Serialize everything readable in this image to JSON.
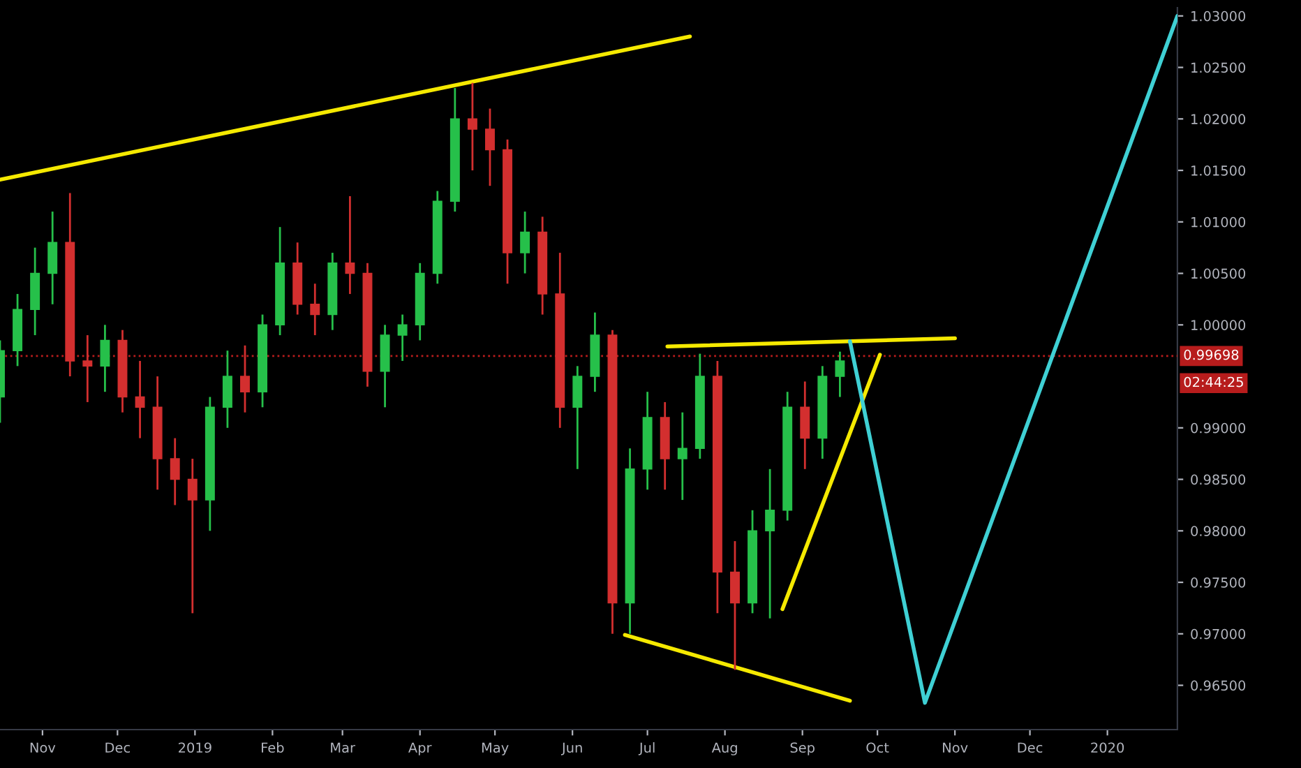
{
  "chart_data": {
    "type": "candlestick",
    "x": [
      "2018-10-15",
      "2018-10-22",
      "2018-10-29",
      "2018-11-05",
      "2018-11-12",
      "2018-11-19",
      "2018-11-26",
      "2018-12-03",
      "2018-12-10",
      "2018-12-17",
      "2018-12-24",
      "2018-12-31",
      "2019-01-07",
      "2019-01-14",
      "2019-01-21",
      "2019-01-28",
      "2019-02-04",
      "2019-02-11",
      "2019-02-18",
      "2019-02-25",
      "2019-03-04",
      "2019-03-11",
      "2019-03-18",
      "2019-03-25",
      "2019-04-01",
      "2019-04-08",
      "2019-04-15",
      "2019-04-22",
      "2019-04-29",
      "2019-05-06",
      "2019-05-13",
      "2019-05-20",
      "2019-05-27",
      "2019-06-03",
      "2019-06-10",
      "2019-06-17",
      "2019-06-24",
      "2019-07-01",
      "2019-07-08",
      "2019-07-15",
      "2019-07-22",
      "2019-07-29",
      "2019-08-05",
      "2019-08-12",
      "2019-08-19",
      "2019-08-26",
      "2019-09-02",
      "2019-09-09",
      "2019-09-16"
    ],
    "ohlc": [
      [
        0.993,
        0.9985,
        0.9905,
        0.9975
      ],
      [
        0.9975,
        1.003,
        0.996,
        1.0015
      ],
      [
        1.0015,
        1.0075,
        0.999,
        1.005
      ],
      [
        1.005,
        1.011,
        1.002,
        1.008
      ],
      [
        1.008,
        1.0128,
        0.995,
        0.9965
      ],
      [
        0.9965,
        0.999,
        0.9925,
        0.996
      ],
      [
        0.996,
        1.0,
        0.9935,
        0.9985
      ],
      [
        0.9985,
        0.9995,
        0.9915,
        0.993
      ],
      [
        0.993,
        0.9965,
        0.989,
        0.992
      ],
      [
        0.992,
        0.995,
        0.984,
        0.987
      ],
      [
        0.987,
        0.989,
        0.9825,
        0.985
      ],
      [
        0.985,
        0.987,
        0.972,
        0.983
      ],
      [
        0.983,
        0.993,
        0.98,
        0.992
      ],
      [
        0.992,
        0.9975,
        0.99,
        0.995
      ],
      [
        0.995,
        0.998,
        0.9915,
        0.9935
      ],
      [
        0.9935,
        1.001,
        0.992,
        1.0
      ],
      [
        1.0,
        1.0095,
        0.999,
        1.006
      ],
      [
        1.006,
        1.008,
        1.001,
        1.002
      ],
      [
        1.002,
        1.004,
        0.999,
        1.001
      ],
      [
        1.001,
        1.007,
        0.9995,
        1.006
      ],
      [
        1.006,
        1.0125,
        1.003,
        1.005
      ],
      [
        1.005,
        1.006,
        0.994,
        0.9955
      ],
      [
        0.9955,
        1.0,
        0.992,
        0.999
      ],
      [
        0.999,
        1.001,
        0.9965,
        1.0
      ],
      [
        1.0,
        1.006,
        0.9985,
        1.005
      ],
      [
        1.005,
        1.013,
        1.004,
        1.012
      ],
      [
        1.012,
        1.023,
        1.011,
        1.02
      ],
      [
        1.02,
        1.0235,
        1.015,
        1.019
      ],
      [
        1.019,
        1.021,
        1.0135,
        1.017
      ],
      [
        1.017,
        1.018,
        1.004,
        1.007
      ],
      [
        1.007,
        1.011,
        1.005,
        1.009
      ],
      [
        1.009,
        1.0105,
        1.001,
        1.003
      ],
      [
        1.003,
        1.007,
        0.99,
        0.992
      ],
      [
        0.992,
        0.996,
        0.986,
        0.995
      ],
      [
        0.995,
        1.0012,
        0.9935,
        0.999
      ],
      [
        0.999,
        0.9995,
        0.97,
        0.973
      ],
      [
        0.973,
        0.988,
        0.97,
        0.986
      ],
      [
        0.986,
        0.9935,
        0.984,
        0.991
      ],
      [
        0.991,
        0.9925,
        0.984,
        0.987
      ],
      [
        0.987,
        0.9915,
        0.983,
        0.988
      ],
      [
        0.988,
        0.9972,
        0.987,
        0.995
      ],
      [
        0.995,
        0.9965,
        0.972,
        0.976
      ],
      [
        0.976,
        0.979,
        0.9665,
        0.973
      ],
      [
        0.973,
        0.982,
        0.972,
        0.98
      ],
      [
        0.98,
        0.986,
        0.9715,
        0.982
      ],
      [
        0.982,
        0.9935,
        0.981,
        0.992
      ],
      [
        0.992,
        0.9945,
        0.986,
        0.989
      ],
      [
        0.989,
        0.996,
        0.987,
        0.995
      ],
      [
        0.995,
        0.9974,
        0.993,
        0.9965
      ]
    ],
    "series": [
      {
        "type": "line",
        "color": "#f5e900",
        "x": [
          "2018-10-15",
          "2019-07-18"
        ],
        "values": [
          1.0141,
          1.028
        ]
      },
      {
        "type": "line",
        "color": "#f5e900",
        "x": [
          "2019-07-09",
          "2019-11-01"
        ],
        "values": [
          0.9979,
          0.9987
        ]
      },
      {
        "type": "line",
        "color": "#f5e900",
        "x": [
          "2019-06-22",
          "2019-09-20"
        ],
        "values": [
          0.9699,
          0.9635
        ]
      },
      {
        "type": "line",
        "color": "#f5e900",
        "x": [
          "2019-08-24",
          "2019-10-02"
        ],
        "values": [
          0.9724,
          0.9971
        ]
      },
      {
        "type": "line",
        "color": "#3fd0d4",
        "x": [
          "2019-09-20",
          "2019-10-20",
          "2020-01-29"
        ],
        "values": [
          0.9984,
          0.9633,
          1.03
        ]
      }
    ],
    "ref_lines": [
      {
        "axis": "y",
        "value": 0.99698,
        "label": "0.99698",
        "color": "#b71c1c",
        "line_style": "dotted"
      }
    ],
    "annotations": [
      "02:44:25"
    ],
    "xlim": [
      "2018-10-15",
      "2020-01-29"
    ],
    "xticks": [
      {
        "value": "2018-11-01",
        "label": "Nov"
      },
      {
        "value": "2018-12-01",
        "label": "Dec"
      },
      {
        "value": "2019-01-01",
        "label": "2019"
      },
      {
        "value": "2019-02-01",
        "label": "Feb"
      },
      {
        "value": "2019-03-01",
        "label": "Mar"
      },
      {
        "value": "2019-04-01",
        "label": "Apr"
      },
      {
        "value": "2019-05-01",
        "label": "May"
      },
      {
        "value": "2019-06-01",
        "label": "Jun"
      },
      {
        "value": "2019-07-01",
        "label": "Jul"
      },
      {
        "value": "2019-08-01",
        "label": "Aug"
      },
      {
        "value": "2019-09-01",
        "label": "Sep"
      },
      {
        "value": "2019-10-01",
        "label": "Oct"
      },
      {
        "value": "2019-11-01",
        "label": "Nov"
      },
      {
        "value": "2019-12-01",
        "label": "Dec"
      },
      {
        "value": "2020-01-01",
        "label": "2020"
      }
    ],
    "ylim": [
      0.9607,
      1.0308
    ],
    "yticks": [
      {
        "value": 0.965,
        "label": "0.96500"
      },
      {
        "value": 0.97,
        "label": "0.97000"
      },
      {
        "value": 0.975,
        "label": "0.97500"
      },
      {
        "value": 0.98,
        "label": "0.98000"
      },
      {
        "value": 0.985,
        "label": "0.98500"
      },
      {
        "value": 0.99,
        "label": "0.99000"
      },
      {
        "value": 1.0,
        "label": "1.00000"
      },
      {
        "value": 1.005,
        "label": "1.00500"
      },
      {
        "value": 1.01,
        "label": "1.01000"
      },
      {
        "value": 1.015,
        "label": "1.01500"
      },
      {
        "value": 1.02,
        "label": "1.02000"
      },
      {
        "value": 1.025,
        "label": "1.02500"
      },
      {
        "value": 1.03,
        "label": "1.03000"
      }
    ],
    "grid": false,
    "legend": false
  }
}
